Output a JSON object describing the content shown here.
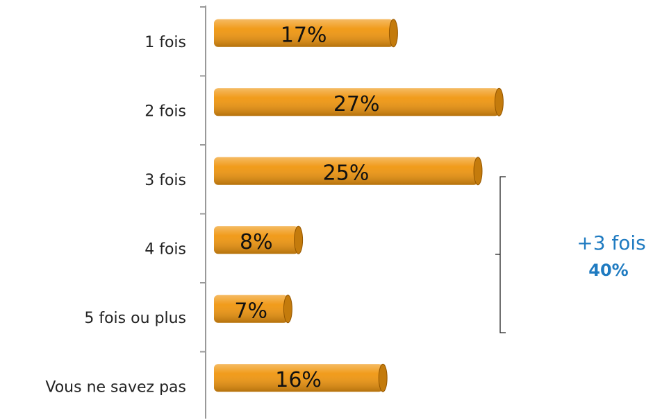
{
  "chart_data": {
    "type": "barh",
    "categories": [
      "1 fois",
      "2 fois",
      "3 fois",
      "4 fois",
      "5 fois ou plus",
      "Vous ne savez pas"
    ],
    "values": [
      17,
      27,
      25,
      8,
      7,
      16
    ],
    "value_labels": [
      "17%",
      "27%",
      "25%",
      "8%",
      "7%",
      "16%"
    ],
    "color": "#f0960f",
    "annotation": {
      "label": "+3 fois",
      "value_label": "40%"
    }
  }
}
